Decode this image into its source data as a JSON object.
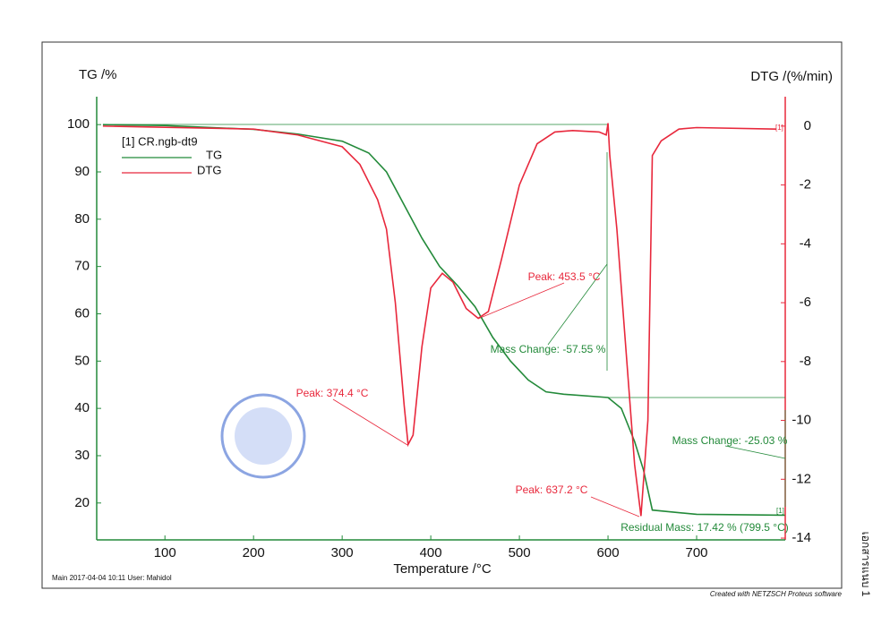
{
  "chart_data": {
    "type": "line",
    "y_label": "TG /%",
    "y2_label": "DTG /(%/min)",
    "x_label": "Temperature /°C",
    "legend_title": "[1] CR.ngb-dt9",
    "xlim": [
      23,
      800
    ],
    "xticks": [
      100,
      200,
      300,
      400,
      500,
      600,
      700
    ],
    "ylim": [
      12.2,
      105.9
    ],
    "yticks": [
      20,
      30,
      40,
      50,
      60,
      70,
      80,
      90,
      100
    ],
    "y2lim": [
      -14.06,
      1.0
    ],
    "y2ticks": [
      0,
      -2,
      -4,
      -6,
      -8,
      -10,
      -12,
      -14
    ],
    "series": [
      {
        "name": "TG",
        "color": "#238a3a",
        "axis": "y",
        "x": [
          30,
          100,
          200,
          250,
          300,
          330,
          350,
          370,
          390,
          410,
          430,
          450,
          470,
          490,
          510,
          530,
          550,
          600,
          615,
          630,
          640,
          650,
          700,
          799.5
        ],
        "values": [
          100,
          99.8,
          99,
          98,
          96.5,
          94,
          90,
          83,
          76,
          70,
          66,
          61.5,
          55,
          50,
          46,
          43.5,
          43,
          42.3,
          40,
          33,
          27,
          18.5,
          17.6,
          17.42
        ]
      },
      {
        "name": "DTG",
        "color": "#e8283c",
        "axis": "y2",
        "x": [
          30,
          200,
          250,
          300,
          320,
          340,
          350,
          360,
          370,
          374.4,
          380,
          390,
          400,
          413,
          425,
          440,
          453.5,
          465,
          480,
          500,
          520,
          540,
          560,
          590,
          598,
          600,
          602,
          610,
          620,
          630,
          637.2,
          645,
          650,
          660,
          680,
          700,
          790
        ],
        "values": [
          0,
          -0.1,
          -0.3,
          -0.7,
          -1.3,
          -2.5,
          -3.5,
          -6,
          -9.5,
          -10.82,
          -10.5,
          -7.5,
          -5.5,
          -5.0,
          -5.3,
          -6.2,
          -6.53,
          -6.3,
          -4.5,
          -2,
          -0.6,
          -0.2,
          -0.15,
          -0.2,
          -0.3,
          0.1,
          -1.0,
          -3.5,
          -7.5,
          -11.5,
          -13.25,
          -10,
          -1.0,
          -0.5,
          -0.1,
          -0.05,
          -0.1
        ]
      }
    ],
    "annotations": [
      "Peak: 453.5 °C",
      "Mass Change: -57.55 %",
      "Peak: 374.4 °C",
      "Mass Change: -25.03 %",
      "Peak: 637.2 °C",
      "Residual Mass: 17.42 % (799.5 °C)",
      "[1]",
      "[1]"
    ],
    "footer_left": "Main   2017-04-04 10:11   User: Mahidol",
    "footer_right": "Created with NETZSCH Proteus software",
    "side_note": "เอกสารแนบ 1"
  }
}
